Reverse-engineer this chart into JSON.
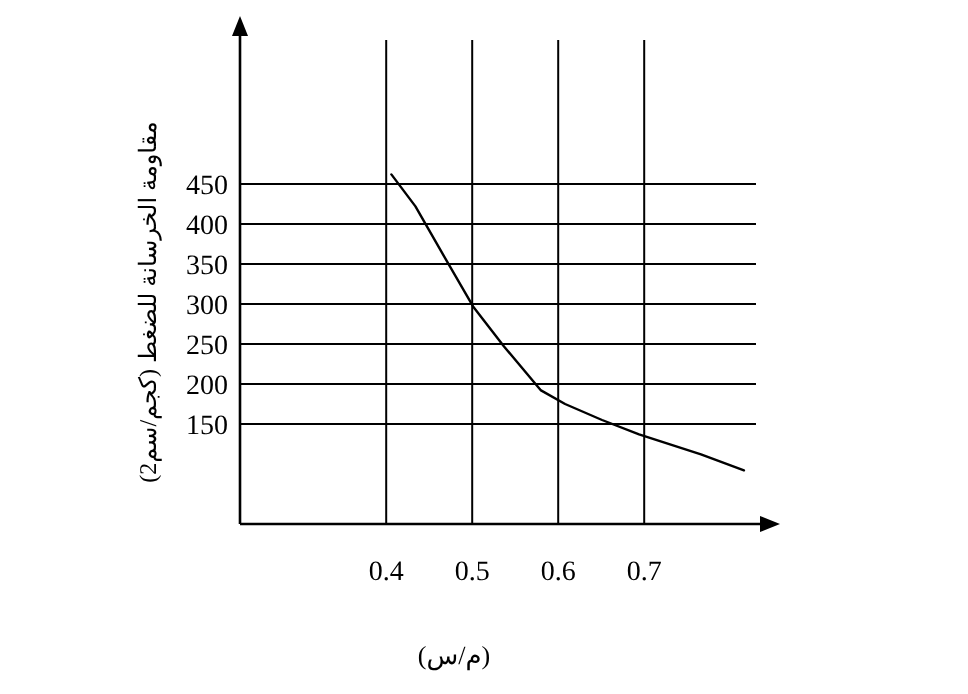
{
  "chart_data": {
    "type": "line",
    "xlabel": "(م/س)",
    "ylabel": "مقاومة الخرسانة للضغط (كجم/سم2)",
    "x": [
      0.406,
      0.434,
      0.466,
      0.501,
      0.537,
      0.58,
      0.608,
      0.651,
      0.694,
      0.766,
      0.816
    ],
    "values": [
      462,
      422,
      362,
      297,
      247,
      192,
      175,
      155,
      137,
      112,
      92
    ],
    "color": "#000000",
    "marker": "none",
    "grid": true,
    "xlim": [
      0.23,
      0.83
    ],
    "xticks": [
      0.4,
      0.5,
      0.6,
      0.7
    ],
    "ylim": [
      25,
      630
    ],
    "yticks": [
      150,
      200,
      250,
      300,
      350,
      400,
      450
    ]
  }
}
